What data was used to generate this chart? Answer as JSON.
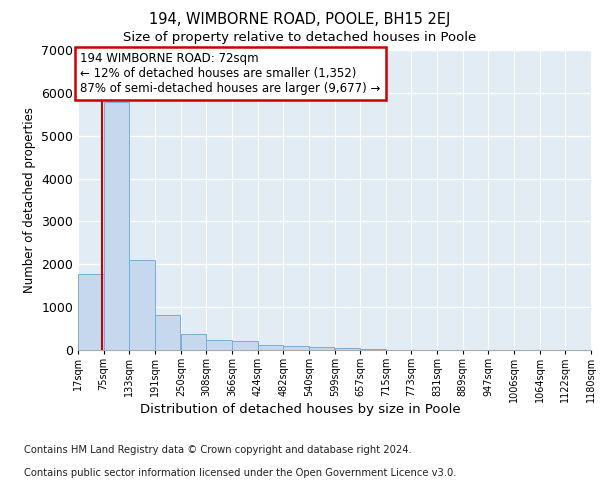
{
  "title": "194, WIMBORNE ROAD, POOLE, BH15 2EJ",
  "subtitle": "Size of property relative to detached houses in Poole",
  "xlabel": "Distribution of detached houses by size in Poole",
  "ylabel": "Number of detached properties",
  "bar_color": "#c5d8ed",
  "bar_edge_color": "#7aadd4",
  "background_color": "#e2ecf5",
  "grid_color": "#ffffff",
  "annotation_box_edgecolor": "#cc0000",
  "annotation_line_color": "#cc0000",
  "annotation_text_line1": "194 WIMBORNE ROAD: 72sqm",
  "annotation_text_line2": "← 12% of detached houses are smaller (1,352)",
  "annotation_text_line3": "87% of semi-detached houses are larger (9,677) →",
  "property_line_x": 72,
  "categories": [
    "17sqm",
    "75sqm",
    "133sqm",
    "191sqm",
    "250sqm",
    "308sqm",
    "366sqm",
    "424sqm",
    "482sqm",
    "540sqm",
    "599sqm",
    "657sqm",
    "715sqm",
    "773sqm",
    "831sqm",
    "889sqm",
    "947sqm",
    "1006sqm",
    "1064sqm",
    "1122sqm",
    "1180sqm"
  ],
  "bar_left_edges": [
    17,
    75,
    133,
    191,
    250,
    308,
    366,
    424,
    482,
    540,
    599,
    657,
    715,
    773,
    831,
    889,
    947,
    1006,
    1064,
    1122
  ],
  "bar_heights": [
    1780,
    5790,
    2090,
    820,
    380,
    240,
    210,
    115,
    90,
    60,
    40,
    20,
    10,
    5,
    3,
    2,
    1,
    1,
    0,
    0
  ],
  "bin_width": 58,
  "ylim": [
    0,
    7000
  ],
  "yticks": [
    0,
    1000,
    2000,
    3000,
    4000,
    5000,
    6000,
    7000
  ],
  "footnote_line1": "Contains HM Land Registry data © Crown copyright and database right 2024.",
  "footnote_line2": "Contains public sector information licensed under the Open Government Licence v3.0."
}
